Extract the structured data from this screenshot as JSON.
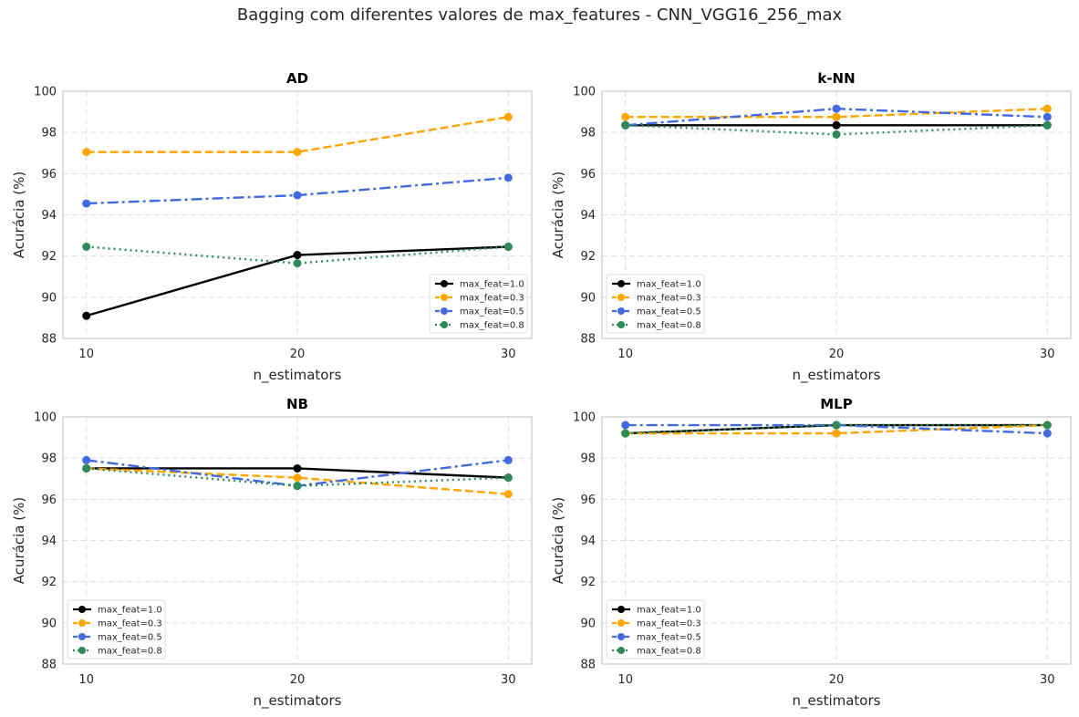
{
  "suptitle": "Bagging com diferentes valores de max_features - CNN_VGG16_256_max",
  "colors": {
    "max_feat=1.0": "#000000",
    "max_feat=0.3": "#FFA500",
    "max_feat=0.5": "#4169E1",
    "max_feat=0.8": "#2E8B57",
    "grid": "#dddddd",
    "frame": "#cccccc"
  },
  "chart_data": [
    {
      "type": "line",
      "title": "AD",
      "xlabel": "n_estimators",
      "ylabel": "Acurácia (%)",
      "x": [
        10,
        20,
        30
      ],
      "ylim": [
        88,
        100
      ],
      "yticks": [
        88,
        90,
        92,
        94,
        96,
        98,
        100
      ],
      "grid": true,
      "legend_loc": "lower right",
      "series": [
        {
          "name": "max_feat=1.0",
          "style": "solid",
          "values": [
            89.1,
            92.05,
            92.45
          ]
        },
        {
          "name": "max_feat=0.3",
          "style": "dashed",
          "values": [
            97.05,
            97.05,
            98.75
          ]
        },
        {
          "name": "max_feat=0.5",
          "style": "dashdot",
          "values": [
            94.55,
            94.95,
            95.8
          ]
        },
        {
          "name": "max_feat=0.8",
          "style": "dotted",
          "values": [
            92.45,
            91.65,
            92.45
          ]
        }
      ]
    },
    {
      "type": "line",
      "title": "k-NN",
      "xlabel": "n_estimators",
      "ylabel": "Acurácia (%)",
      "x": [
        10,
        20,
        30
      ],
      "ylim": [
        88,
        100
      ],
      "yticks": [
        88,
        90,
        92,
        94,
        96,
        98,
        100
      ],
      "grid": true,
      "legend_loc": "lower left",
      "series": [
        {
          "name": "max_feat=1.0",
          "style": "solid",
          "values": [
            98.35,
            98.35,
            98.35
          ]
        },
        {
          "name": "max_feat=0.3",
          "style": "dashed",
          "values": [
            98.75,
            98.75,
            99.15
          ]
        },
        {
          "name": "max_feat=0.5",
          "style": "dashdot",
          "values": [
            98.35,
            99.15,
            98.75
          ]
        },
        {
          "name": "max_feat=0.8",
          "style": "dotted",
          "values": [
            98.35,
            97.9,
            98.35
          ]
        }
      ]
    },
    {
      "type": "line",
      "title": "NB",
      "xlabel": "n_estimators",
      "ylabel": "Acurácia (%)",
      "x": [
        10,
        20,
        30
      ],
      "ylim": [
        88,
        100
      ],
      "yticks": [
        88,
        90,
        92,
        94,
        96,
        98,
        100
      ],
      "grid": true,
      "legend_loc": "lower left",
      "series": [
        {
          "name": "max_feat=1.0",
          "style": "solid",
          "values": [
            97.5,
            97.5,
            97.05
          ]
        },
        {
          "name": "max_feat=0.3",
          "style": "dashed",
          "values": [
            97.5,
            97.05,
            96.25
          ]
        },
        {
          "name": "max_feat=0.5",
          "style": "dashdot",
          "values": [
            97.9,
            96.65,
            97.9
          ]
        },
        {
          "name": "max_feat=0.8",
          "style": "dotted",
          "values": [
            97.5,
            96.65,
            97.05
          ]
        }
      ]
    },
    {
      "type": "line",
      "title": "MLP",
      "xlabel": "n_estimators",
      "ylabel": "Acurácia (%)",
      "x": [
        10,
        20,
        30
      ],
      "ylim": [
        88,
        100
      ],
      "yticks": [
        88,
        90,
        92,
        94,
        96,
        98,
        100
      ],
      "grid": true,
      "legend_loc": "lower left",
      "series": [
        {
          "name": "max_feat=1.0",
          "style": "solid",
          "values": [
            99.2,
            99.6,
            99.6
          ]
        },
        {
          "name": "max_feat=0.3",
          "style": "dashed",
          "values": [
            99.2,
            99.2,
            99.6
          ]
        },
        {
          "name": "max_feat=0.5",
          "style": "dashdot",
          "values": [
            99.6,
            99.6,
            99.2
          ]
        },
        {
          "name": "max_feat=0.8",
          "style": "dotted",
          "values": [
            99.2,
            99.6,
            99.6
          ]
        }
      ]
    }
  ]
}
